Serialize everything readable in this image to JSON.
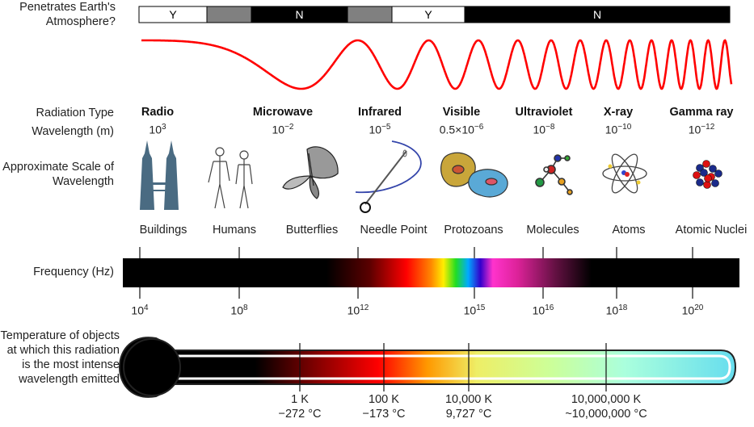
{
  "row_labels": {
    "penetrates": "Penetrates Earth's Atmosphere?",
    "radiation_type": "Radiation Type",
    "wavelength": "Wavelength (m)",
    "approx_scale": "Approximate Scale of Wavelength",
    "frequency": "Frequency (Hz)",
    "temperature": "Temperature of objects at which this radiation is the most intense wavelength emitted"
  },
  "atmosphere_bar": {
    "segments": [
      {
        "label": "Y",
        "fill": "#ffffff",
        "text_color": "#000000"
      },
      {
        "label": "",
        "fill": "#808080",
        "text_color": "#ffffff"
      },
      {
        "label": "N",
        "fill": "#000000",
        "text_color": "#ffffff"
      },
      {
        "label": "",
        "fill": "#808080",
        "text_color": "#ffffff"
      },
      {
        "label": "Y",
        "fill": "#ffffff",
        "text_color": "#000000"
      },
      {
        "label": "N",
        "fill": "#000000",
        "text_color": "#ffffff"
      }
    ]
  },
  "wave": {
    "color": "#ff0000"
  },
  "radiation_types": [
    {
      "name": "Radio",
      "base": "10",
      "exp": "3"
    },
    {
      "name": "Microwave",
      "base": "10",
      "exp": "−2"
    },
    {
      "name": "Infrared",
      "base": "10",
      "exp": "−5"
    },
    {
      "name": "Visible",
      "base": "0.5×10",
      "exp": "−6"
    },
    {
      "name": "Ultraviolet",
      "base": "10",
      "exp": "−8"
    },
    {
      "name": "X-ray",
      "base": "10",
      "exp": "−10"
    },
    {
      "name": "Gamma ray",
      "base": "10",
      "exp": "−12"
    }
  ],
  "scale_objects": [
    {
      "label": "Buildings",
      "icon": "buildings-icon"
    },
    {
      "label": "Humans",
      "icon": "humans-icon"
    },
    {
      "label": "Butterflies",
      "icon": "butterfly-icon"
    },
    {
      "label": "Needle Point",
      "icon": "needle-icon"
    },
    {
      "label": "Protozoans",
      "icon": "protozoan-icon"
    },
    {
      "label": "Molecules",
      "icon": "molecule-icon"
    },
    {
      "label": "Atoms",
      "icon": "atom-icon"
    },
    {
      "label": "Atomic Nuclei",
      "icon": "nucleus-icon"
    }
  ],
  "frequency_ticks": [
    {
      "base": "10",
      "exp": "4"
    },
    {
      "base": "10",
      "exp": "8"
    },
    {
      "base": "10",
      "exp": "12"
    },
    {
      "base": "10",
      "exp": "15"
    },
    {
      "base": "10",
      "exp": "16"
    },
    {
      "base": "10",
      "exp": "18"
    },
    {
      "base": "10",
      "exp": "20"
    }
  ],
  "temperature_ticks": [
    {
      "kelvin": "1 K",
      "celsius": "−272 °C"
    },
    {
      "kelvin": "100 K",
      "celsius": "−173 °C"
    },
    {
      "kelvin": "10,000 K",
      "celsius": "9,727 °C"
    },
    {
      "kelvin": "10,000,000 K",
      "celsius": "~10,000,000 °C"
    }
  ]
}
